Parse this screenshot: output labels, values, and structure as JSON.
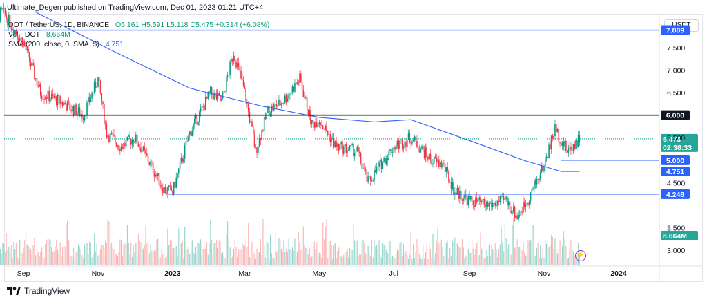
{
  "publisher_line": "Ultimate_Degen published on TradingView.com, Dec 01, 2023 01:21 UTC+4",
  "legend": {
    "symbol": "DOT / TetherUS, 1D, BINANCE",
    "ohlc": "O5.161 H5.591 L5.118 C5.475 +0.314 (+6.08%)",
    "vol_label": "Vol · DOT",
    "vol_value": "8.664M",
    "sma_label": "SMA (200, close, 0, SMA, 5)",
    "sma_value": "4.751"
  },
  "currency": "USDT",
  "branding": "TradingView",
  "colors": {
    "up": "#089981",
    "down": "#f23645",
    "vol_up": "#7fccc0",
    "vol_down": "#f7a9a7",
    "sma": "#2962ff",
    "hline_blue": "#2962ff",
    "hline_black": "#131722",
    "badge_teal": "#26a69a"
  },
  "chart_data": {
    "type": "candlestick",
    "title": "DOT / TetherUS, 1D, BINANCE",
    "y_ticks": [
      "7.500",
      "7.000",
      "6.500",
      "5.500",
      "4.500",
      "3.500",
      "3.000"
    ],
    "x_ticks": [
      "Sep",
      "Nov",
      "2023",
      "Mar",
      "May",
      "Jul",
      "Sep",
      "Nov",
      "2024"
    ],
    "ylim": [
      2.65,
      8.25
    ],
    "price_scale": "linear",
    "horizontal_levels": [
      {
        "value": 7.889,
        "label": "7.889",
        "color": "#2962ff"
      },
      {
        "value": 6.0,
        "label": "6.000",
        "color": "#131722"
      },
      {
        "value": 5.0,
        "label": "5.000",
        "color": "#2962ff"
      },
      {
        "value": 4.248,
        "label": "4.248",
        "color": "#2962ff"
      }
    ],
    "last_price": {
      "value": 5.475,
      "label": "5.475",
      "countdown": "02:38:33"
    },
    "sma_last": {
      "value": 4.751,
      "label": "4.751"
    },
    "volume_last": {
      "label": "8.664M"
    },
    "price_path": [
      [
        "2022-08-01",
        7.9
      ],
      [
        "2022-08-15",
        8.3
      ],
      [
        "2022-09-01",
        7.6
      ],
      [
        "2022-09-15",
        6.5
      ],
      [
        "2022-10-01",
        6.3
      ],
      [
        "2022-10-20",
        6.0
      ],
      [
        "2022-11-01",
        6.8
      ],
      [
        "2022-11-08",
        5.6
      ],
      [
        "2022-11-20",
        5.3
      ],
      [
        "2022-12-01",
        5.5
      ],
      [
        "2022-12-10",
        5.1
      ],
      [
        "2022-12-25",
        4.35
      ],
      [
        "2023-01-01",
        4.3
      ],
      [
        "2023-01-15",
        5.6
      ],
      [
        "2023-02-01",
        6.5
      ],
      [
        "2023-02-10",
        6.3
      ],
      [
        "2023-02-20",
        7.4
      ],
      [
        "2023-03-01",
        6.5
      ],
      [
        "2023-03-10",
        5.2
      ],
      [
        "2023-03-20",
        6.1
      ],
      [
        "2023-04-01",
        6.3
      ],
      [
        "2023-04-15",
        6.8
      ],
      [
        "2023-04-25",
        5.8
      ],
      [
        "2023-05-01",
        5.9
      ],
      [
        "2023-05-15",
        5.3
      ],
      [
        "2023-06-01",
        5.2
      ],
      [
        "2023-06-10",
        4.5
      ],
      [
        "2023-06-20",
        4.9
      ],
      [
        "2023-07-01",
        5.3
      ],
      [
        "2023-07-15",
        5.5
      ],
      [
        "2023-08-01",
        5.0
      ],
      [
        "2023-08-10",
        4.9
      ],
      [
        "2023-08-20",
        4.3
      ],
      [
        "2023-09-01",
        4.1
      ],
      [
        "2023-09-15",
        4.0
      ],
      [
        "2023-10-01",
        4.1
      ],
      [
        "2023-10-10",
        3.75
      ],
      [
        "2023-10-20",
        4.2
      ],
      [
        "2023-11-01",
        4.9
      ],
      [
        "2023-11-10",
        5.7
      ],
      [
        "2023-11-20",
        5.2
      ],
      [
        "2023-11-30",
        5.475
      ]
    ],
    "sma_path": [
      [
        "2022-09-10",
        8.3
      ],
      [
        "2022-11-15",
        7.4
      ],
      [
        "2023-01-15",
        6.6
      ],
      [
        "2023-03-15",
        6.2
      ],
      [
        "2023-05-01",
        5.95
      ],
      [
        "2023-06-15",
        5.85
      ],
      [
        "2023-07-15",
        5.9
      ],
      [
        "2023-08-15",
        5.6
      ],
      [
        "2023-09-15",
        5.3
      ],
      [
        "2023-10-15",
        5.0
      ],
      [
        "2023-11-15",
        4.75
      ],
      [
        "2023-11-30",
        4.751
      ]
    ],
    "volume_last_value_millions": 8.664
  }
}
